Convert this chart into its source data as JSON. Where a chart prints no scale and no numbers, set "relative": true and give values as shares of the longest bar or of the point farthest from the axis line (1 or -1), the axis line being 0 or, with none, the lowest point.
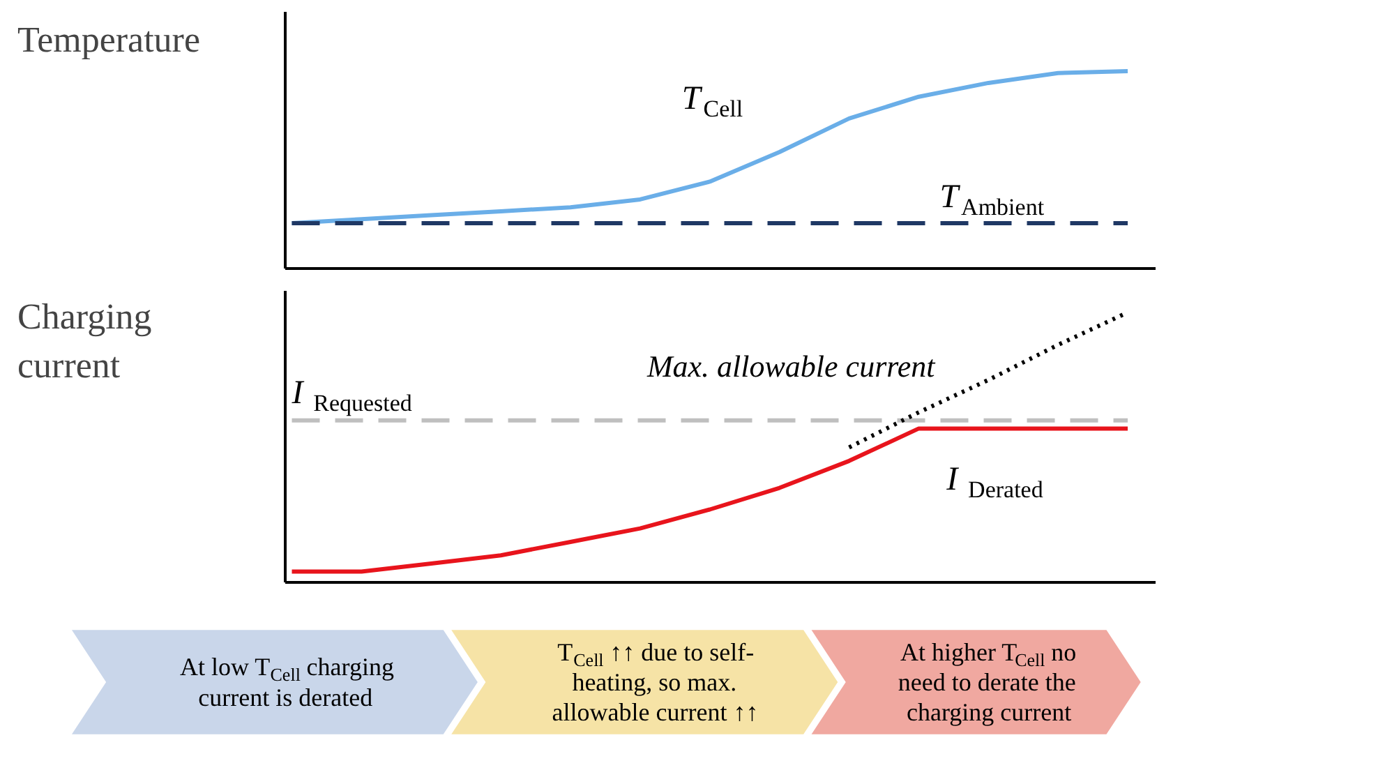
{
  "chart_data": [
    {
      "type": "line",
      "ylabel": "Temperature",
      "relative": true,
      "grid": false,
      "categories": [
        null,
        null,
        null,
        null,
        null,
        null,
        null,
        null,
        null,
        null,
        null,
        null,
        null
      ],
      "series": [
        {
          "name": "T$_{Cell}$",
          "color": "#6aaee8",
          "line_style": "solid",
          "values": [
            0.23,
            0.25,
            0.27,
            0.29,
            0.31,
            0.35,
            0.44,
            0.59,
            0.76,
            0.87,
            0.94,
            0.99,
            1.0
          ]
        },
        {
          "name": "T$_{Ambient}$",
          "color": "#1f3864",
          "line_style": "dashed",
          "values": [
            0.23,
            0.23,
            0.23,
            0.23,
            0.23,
            0.23,
            0.23,
            0.23,
            0.23,
            0.23,
            0.23,
            0.23,
            0.23
          ]
        }
      ]
    },
    {
      "type": "line",
      "ylabel": "Charging\ncurrent",
      "relative": true,
      "grid": false,
      "categories": [
        null,
        null,
        null,
        null,
        null,
        null,
        null,
        null,
        null,
        null,
        null,
        null,
        null
      ],
      "series": [
        {
          "name": "I$_{Requested}$",
          "color": "#bfbfbf",
          "line_style": "dashed",
          "values": [
            0.6,
            0.6,
            0.6,
            0.6,
            0.6,
            0.6,
            0.6,
            0.6,
            0.6,
            0.6,
            0.6,
            0.6,
            0.6
          ]
        },
        {
          "name": "I$_{Derated}$",
          "color": "#e8141c",
          "line_style": "solid",
          "values": [
            0.04,
            0.04,
            0.07,
            0.1,
            0.15,
            0.2,
            0.27,
            0.35,
            0.45,
            0.57,
            0.57,
            0.57,
            0.57
          ]
        },
        {
          "name": "Max. allowable current",
          "color": "#000000",
          "line_style": "dotted",
          "values": [
            null,
            null,
            null,
            null,
            null,
            null,
            null,
            null,
            0.5,
            0.63,
            0.75,
            0.88,
            1.0
          ]
        }
      ]
    },
    {
      "type": "other",
      "annotations": [
        "At low T$_{Cell}$ charging\ncurrent is derated",
        "T$_{Cell}$ ↑↑ due to self-\nheating, so max.\nallowable current ↑↑",
        "At higher T$_{Cell}$ no\nneed to derate the\ncharging current"
      ]
    }
  ]
}
